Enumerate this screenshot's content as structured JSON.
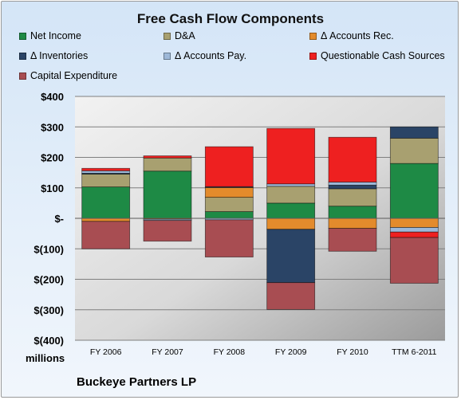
{
  "chart_data": {
    "type": "bar",
    "stacked": true,
    "title": "Free Cash Flow Components",
    "categories": [
      "FY 2006",
      "FY 2007",
      "FY 2008",
      "FY 2009",
      "FY 2010",
      "TTM 6-2011"
    ],
    "units_label": "millions",
    "company": "Buckeye Partners LP",
    "ylim": [
      -400,
      400
    ],
    "yticks": [
      "$400",
      "$300",
      "$200",
      "$100",
      "$-",
      "$(100)",
      "$(200)",
      "$(300)",
      "$(400)"
    ],
    "ytick_values": [
      400,
      300,
      200,
      100,
      0,
      -100,
      -200,
      -300,
      -400
    ],
    "grid": true,
    "legend_position": "top",
    "series": [
      {
        "name": "Net Income",
        "color": "#1e8a45",
        "values": [
          103,
          155,
          22,
          50,
          40,
          180
        ]
      },
      {
        "name": "D&A",
        "color": "#a8a070",
        "values": [
          42,
          43,
          47,
          55,
          57,
          83
        ]
      },
      {
        "name": "Δ Accounts Rec.",
        "color": "#e38b2c",
        "values": [
          -10,
          -3,
          32,
          -36,
          -33,
          -30
        ]
      },
      {
        "name": "Δ Inventories",
        "color": "#2a4466",
        "values": [
          3,
          0,
          3,
          -175,
          12,
          37
        ]
      },
      {
        "name": "Δ Accounts Pay.",
        "color": "#9db8d8",
        "values": [
          8,
          -4,
          -5,
          8,
          10,
          -15
        ]
      },
      {
        "name": "Questionable Cash Sources",
        "color": "#ee2020",
        "values": [
          8,
          7,
          131,
          182,
          147,
          -18
        ]
      },
      {
        "name": "Capital Expenditure",
        "color": "#a84d52",
        "values": [
          -90,
          -68,
          -122,
          -88,
          -75,
          -150
        ]
      }
    ]
  }
}
